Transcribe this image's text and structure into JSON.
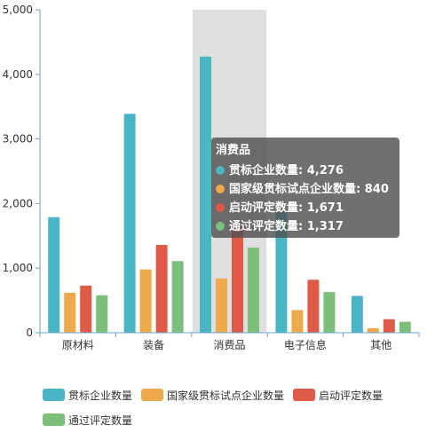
{
  "chart_data": {
    "type": "bar",
    "categories": [
      "原材料",
      "装备",
      "消费品",
      "电子信息",
      "其他"
    ],
    "ylim": [
      0,
      5000
    ],
    "y_ticks": [
      0,
      1000,
      2000,
      3000,
      4000,
      5000
    ],
    "y_tick_labels": [
      "0",
      "1,000",
      "2,000",
      "3,000",
      "4,000",
      "5,000"
    ],
    "grid": false,
    "legend_position": "bottom",
    "highlighted_category": "消费品",
    "series": [
      {
        "name": "贯标企业数量",
        "color": "#4ab6c5",
        "values": [
          1790,
          3390,
          4276,
          1880,
          570
        ]
      },
      {
        "name": "国家级贯标试点企业数量",
        "color": "#eea94b",
        "values": [
          620,
          980,
          840,
          350,
          70
        ]
      },
      {
        "name": "启动评定数量",
        "color": "#e05a48",
        "values": [
          730,
          1360,
          1671,
          820,
          210
        ]
      },
      {
        "name": "通过评定数量",
        "color": "#7bbf7b",
        "values": [
          580,
          1110,
          1317,
          630,
          170
        ]
      }
    ]
  },
  "tooltip": {
    "title": "消费品",
    "rows": [
      {
        "label": "贯标企业数量",
        "value": "4,276",
        "color": "#4ab6c5"
      },
      {
        "label": "国家级贯标试点企业数量",
        "value": "840",
        "color": "#eea94b"
      },
      {
        "label": "启动评定数量",
        "value": "1,671",
        "color": "#e05a48"
      },
      {
        "label": "通过评定数量",
        "value": "1,317",
        "color": "#7bbf7b"
      }
    ]
  },
  "legend": [
    {
      "label": "贯标企业数量",
      "color": "#4ab6c5"
    },
    {
      "label": "国家级贯标试点企业数量",
      "color": "#eea94b"
    },
    {
      "label": "启动评定数量",
      "color": "#e05a48"
    },
    {
      "label": "通过评定数量",
      "color": "#7bbf7b"
    }
  ]
}
